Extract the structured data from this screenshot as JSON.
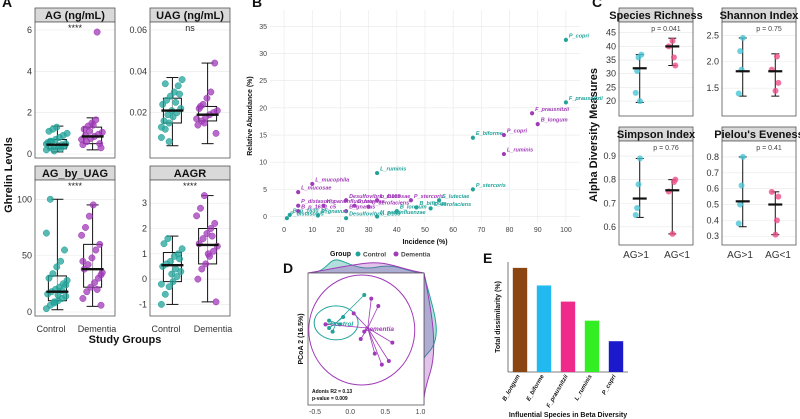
{
  "colors": {
    "control": "#22a39a",
    "dementia": "#a03ab8",
    "panel_bg": "#ffffff",
    "strip": "#d9d9d9"
  },
  "panel_labels": {
    "a": "A",
    "b": "B",
    "c": "C",
    "d": "D",
    "e": "E"
  },
  "panel_a": {
    "ylabel": "Ghrelin Levels",
    "xlabel": "Study Groups",
    "groups": [
      "Control",
      "Dementia"
    ]
  },
  "panel_c": {
    "ylabel": "Alpha Diversity Measures",
    "groups": [
      "AG>1",
      "AG<1"
    ]
  },
  "chart_data": [
    {
      "type": "box",
      "panel": "A1",
      "title": "AG (ng/mL)",
      "significance": "****",
      "categories": [
        "Control",
        "Dementia"
      ],
      "ylim": [
        0,
        6
      ],
      "ticks": [
        "0",
        "2",
        "4",
        "6"
      ],
      "median": [
        0.45,
        0.85
      ],
      "q1": [
        0.25,
        0.5
      ],
      "q3": [
        0.7,
        1.3
      ],
      "whisker_low": [
        0.1,
        0.2
      ],
      "whisker_high": [
        1.35,
        1.75
      ],
      "points": [
        [
          0.2,
          0.3,
          0.35,
          0.4,
          0.45,
          0.5,
          0.55,
          0.6,
          0.7,
          0.8,
          0.9,
          1.0,
          1.1,
          1.2,
          1.3,
          0.25,
          0.38,
          0.48,
          0.62,
          0.15
        ],
        [
          0.3,
          0.45,
          0.6,
          0.75,
          0.85,
          0.95,
          1.05,
          1.2,
          1.35,
          1.5,
          1.65,
          0.5,
          0.7,
          0.9,
          1.1,
          1.4,
          5.9
        ]
      ]
    },
    {
      "type": "box",
      "panel": "A2",
      "title": "UAG (ng/mL)",
      "significance": "ns",
      "categories": [
        "Control",
        "Dementia"
      ],
      "ylim": [
        0,
        0.06
      ],
      "ticks": [
        "0.02",
        "0.04",
        "0.06"
      ],
      "median": [
        0.021,
        0.019
      ],
      "q1": [
        0.015,
        0.016
      ],
      "q3": [
        0.027,
        0.023
      ],
      "whisker_low": [
        0.004,
        0.005
      ],
      "whisker_high": [
        0.037,
        0.044
      ],
      "points": [
        [
          0.008,
          0.012,
          0.015,
          0.018,
          0.02,
          0.022,
          0.024,
          0.026,
          0.028,
          0.03,
          0.033,
          0.036,
          0.016,
          0.019,
          0.021,
          0.025,
          0.029,
          0.013,
          0.034,
          0.006
        ],
        [
          0.01,
          0.014,
          0.016,
          0.018,
          0.019,
          0.02,
          0.021,
          0.022,
          0.024,
          0.027,
          0.03,
          0.044,
          0.017,
          0.023,
          0.015
        ]
      ]
    },
    {
      "type": "box",
      "panel": "A3",
      "title": "AG_by_UAG",
      "significance": "****",
      "categories": [
        "Control",
        "Dementia"
      ],
      "ylim": [
        0,
        110
      ],
      "ticks": [
        "0",
        "50",
        "100"
      ],
      "median": [
        18,
        38
      ],
      "q1": [
        10,
        22
      ],
      "q3": [
        32,
        60
      ],
      "whisker_low": [
        2,
        5
      ],
      "whisker_high": [
        100,
        95
      ],
      "points": [
        [
          3,
          6,
          8,
          10,
          12,
          14,
          16,
          18,
          20,
          22,
          25,
          28,
          30,
          34,
          40,
          45,
          55,
          70,
          100,
          9,
          15,
          19,
          24
        ],
        [
          6,
          12,
          18,
          22,
          26,
          30,
          35,
          38,
          42,
          48,
          55,
          60,
          68,
          75,
          85,
          95,
          20,
          33,
          45
        ]
      ]
    },
    {
      "type": "box",
      "panel": "A4",
      "title": "AAGR",
      "significance": "****",
      "categories": [
        "Control",
        "Dementia"
      ],
      "ylim": [
        -1.3,
        3.6
      ],
      "ticks": [
        "-1",
        "0",
        "1",
        "2",
        "3"
      ],
      "median": [
        0.55,
        1.35
      ],
      "q1": [
        -0.1,
        0.6
      ],
      "q3": [
        1.05,
        2.0
      ],
      "whisker_low": [
        -1.0,
        -0.9
      ],
      "whisker_high": [
        1.7,
        3.3
      ],
      "points": [
        [
          -1.0,
          -0.6,
          -0.3,
          -0.1,
          0.1,
          0.3,
          0.5,
          0.6,
          0.7,
          0.9,
          1.0,
          1.2,
          1.4,
          1.6,
          0.2,
          0.4,
          0.8,
          -0.2
        ],
        [
          -0.9,
          0.0,
          0.4,
          0.6,
          0.9,
          1.1,
          1.3,
          1.4,
          1.6,
          1.8,
          2.0,
          2.2,
          2.5,
          2.8,
          3.3,
          1.0,
          1.7
        ]
      ]
    },
    {
      "type": "scatter",
      "panel": "B",
      "xlabel": "Incidence (%)",
      "ylabel": "Relative Abundance (%)",
      "xlim": [
        -5,
        105
      ],
      "ylim": [
        -1,
        38
      ],
      "xticks": [
        "0",
        "10",
        "20",
        "30",
        "40",
        "50",
        "60",
        "70",
        "80",
        "90",
        "100"
      ],
      "yticks": [
        "0",
        "5",
        "10",
        "15",
        "20",
        "25",
        "30",
        "35"
      ],
      "legend": {
        "title": "Group",
        "entries": [
          "Control",
          "Dementia"
        ]
      },
      "points": [
        {
          "label": "P_copri",
          "x": 100,
          "y": 32.5,
          "group": "Control"
        },
        {
          "label": "F_prausnitzii",
          "x": 100,
          "y": 21,
          "group": "Control"
        },
        {
          "label": "E_biforme",
          "x": 67,
          "y": 14.5,
          "group": "Control"
        },
        {
          "label": "P_copri",
          "x": 78,
          "y": 15,
          "group": "Dementia"
        },
        {
          "label": "F_prausnitzii",
          "x": 88,
          "y": 19,
          "group": "Dementia"
        },
        {
          "label": "B_longum",
          "x": 90,
          "y": 17,
          "group": "Dementia"
        },
        {
          "label": "L_ruminis",
          "x": 78,
          "y": 11.5,
          "group": "Dementia"
        },
        {
          "label": "L_ruminis",
          "x": 33,
          "y": 8,
          "group": "Control"
        },
        {
          "label": "P_stercoris",
          "x": 67,
          "y": 5,
          "group": "Control"
        },
        {
          "label": "P_stercoris",
          "x": 45,
          "y": 3,
          "group": "Dementia"
        },
        {
          "label": "S_luteciae",
          "x": 55,
          "y": 3,
          "group": "Control"
        },
        {
          "label": "C_aerofaciens",
          "x": 52,
          "y": 1.5,
          "group": "Control"
        },
        {
          "label": "B_bifidum",
          "x": 47,
          "y": 1.7,
          "group": "Control"
        },
        {
          "label": "B_longum",
          "x": 40,
          "y": 1,
          "group": "Control"
        },
        {
          "label": "L_mucosae",
          "x": 33,
          "y": 3,
          "group": "Dementia"
        },
        {
          "label": "S_luteciae",
          "x": 25,
          "y": 2,
          "group": "Dementia"
        },
        {
          "label": "C_aerofaciens",
          "x": 30,
          "y": 1.8,
          "group": "Dementia"
        },
        {
          "label": "Desulfovibrio_D168",
          "x": 22,
          "y": 3,
          "group": "Dementia"
        },
        {
          "label": "L_mucosae",
          "x": 5,
          "y": 4.5,
          "group": "Dementia"
        },
        {
          "label": "L_mucophila",
          "x": 10,
          "y": 6,
          "group": "Dementia"
        },
        {
          "label": "P_distasonis",
          "x": 5,
          "y": 2,
          "group": "Dementia"
        },
        {
          "label": "H_parainfluenzae",
          "x": 14,
          "y": 2,
          "group": "Dementia"
        },
        {
          "label": "B_p_1630_c5",
          "x": 5,
          "y": 1,
          "group": "Dementia"
        },
        {
          "label": "B_gnavus",
          "x": 22,
          "y": 1,
          "group": "Dementia"
        },
        {
          "label": "B_p_1630_c5",
          "x": 2,
          "y": 0.3,
          "group": "Control"
        },
        {
          "label": "R_gnavus",
          "x": 12,
          "y": 0.2,
          "group": "Control"
        },
        {
          "label": "P_distasonis",
          "x": 1,
          "y": -0.3,
          "group": "Control"
        },
        {
          "label": "Desulfovibrio_D168",
          "x": 22,
          "y": -0.3,
          "group": "Control"
        },
        {
          "label": "H_parainfluenzae",
          "x": 33,
          "y": 0,
          "group": "Control"
        }
      ]
    },
    {
      "type": "box",
      "panel": "C1",
      "title": "Species Richness",
      "pvalue": "p = 0.041",
      "categories": [
        "AG>1",
        "AG<1"
      ],
      "ylim": [
        16,
        46
      ],
      "ticks": [
        "20",
        "25",
        "30",
        "35",
        "40",
        "45"
      ],
      "mean": [
        32,
        40
      ],
      "sd_low": [
        19.5,
        33
      ],
      "sd_high": [
        37,
        43
      ],
      "points": [
        [
          23,
          31,
          36,
          20,
          37
        ],
        [
          42,
          36,
          33,
          40
        ]
      ]
    },
    {
      "type": "box",
      "panel": "C2",
      "title": "Shannon Index",
      "pvalue": "p = 0.75",
      "categories": [
        "AG>1",
        "AG<1"
      ],
      "ylim": [
        1.05,
        2.6
      ],
      "ticks": [
        "1.5",
        "2.0",
        "2.5"
      ],
      "mean": [
        1.82,
        1.82
      ],
      "sd_low": [
        1.35,
        1.35
      ],
      "sd_high": [
        2.45,
        2.15
      ],
      "points": [
        [
          1.4,
          2.2,
          1.85,
          2.45
        ],
        [
          1.45,
          2.1,
          1.6,
          1.85
        ]
      ]
    },
    {
      "type": "box",
      "panel": "C3",
      "title": "Simpson Index",
      "pvalue": "p = 0.76",
      "categories": [
        "AG>1",
        "AG<1"
      ],
      "ylim": [
        0.54,
        0.93
      ],
      "ticks": [
        "0.6",
        "0.7",
        "0.8",
        "0.9"
      ],
      "mean": [
        0.72,
        0.755
      ],
      "sd_low": [
        0.64,
        0.57
      ],
      "sd_high": [
        0.89,
        0.8
      ],
      "points": [
        [
          0.65,
          0.68,
          0.78,
          0.89
        ],
        [
          0.57,
          0.79,
          0.8,
          0.75
        ]
      ]
    },
    {
      "type": "box",
      "panel": "C4",
      "title": "Pielou's Eveness",
      "pvalue": "p = 0.41",
      "categories": [
        "AG>1",
        "AG<1"
      ],
      "ylim": [
        0.27,
        0.85
      ],
      "ticks": [
        "0.3",
        "0.4",
        "0.5",
        "0.6",
        "0.7",
        "0.8"
      ],
      "mean": [
        0.52,
        0.5
      ],
      "sd_low": [
        0.36,
        0.31
      ],
      "sd_high": [
        0.8,
        0.58
      ],
      "points": [
        [
          0.38,
          0.5,
          0.62,
          0.8
        ],
        [
          0.31,
          0.4,
          0.55,
          0.58
        ]
      ]
    },
    {
      "type": "scatter",
      "panel": "D",
      "xlabel": "",
      "ylabel": "PCoA 2 (16.5%)",
      "xlim": [
        -0.6,
        1.05
      ],
      "ylim": [
        -1.05,
        0.75
      ],
      "xticks": [
        "-0.5",
        "0.0",
        "0.5",
        "1.0"
      ],
      "annotation": [
        "Adonis R2 = 0.13",
        "p-value = 0.009"
      ],
      "centroids": [
        {
          "label": "Control",
          "x": -0.2,
          "y": 0.07
        },
        {
          "label": "Dementia",
          "x": 0.25,
          "y": 0.0
        }
      ],
      "series": [
        {
          "name": "Control",
          "points": [
            [
              -0.35,
              0.05
            ],
            [
              -0.3,
              0.1
            ],
            [
              -0.25,
              -0.05
            ],
            [
              -0.15,
              0.05
            ],
            [
              -0.1,
              0.15
            ],
            [
              0.2,
              0.45
            ],
            [
              -0.3,
              0.0
            ]
          ]
        },
        {
          "name": "Dementia",
          "points": [
            [
              -0.35,
              0.05
            ],
            [
              0.05,
              0.2
            ],
            [
              0.15,
              -0.15
            ],
            [
              0.3,
              0.4
            ],
            [
              0.35,
              -0.35
            ],
            [
              0.45,
              -0.5
            ],
            [
              0.55,
              -0.45
            ],
            [
              0.6,
              -0.2
            ],
            [
              0.4,
              0.3
            ],
            [
              0.2,
              -0.05
            ]
          ]
        }
      ]
    },
    {
      "type": "bar",
      "panel": "E",
      "xlabel": "Influential Species in Beta Diversity",
      "ylabel": "Total dissimilarity (%)",
      "categories": [
        "B_longum",
        "E_biforme",
        "F_prausnitzii",
        "L_ruminis",
        "P_copri"
      ],
      "values": [
        71,
        59,
        48,
        35,
        21
      ],
      "colors": [
        "#8b4513",
        "#22b8f0",
        "#f02a8a",
        "#33ee22",
        "#1a1acc"
      ],
      "ylim": [
        0,
        75
      ]
    }
  ]
}
